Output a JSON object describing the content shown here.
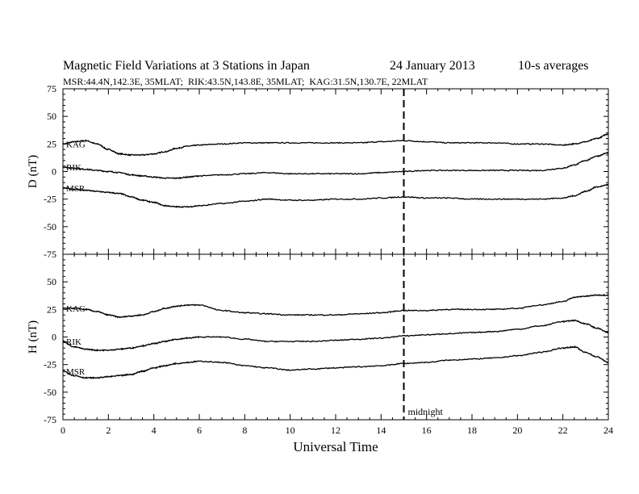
{
  "chart_data": [
    {
      "type": "line",
      "panel": "D",
      "title": "Magnetic Field Variations at 3 Stations in Japan",
      "date": "24 January 2013",
      "note": "10-s averages",
      "subtitle": "MSR:44.4N,142.3E, 35MLAT;  RIK:43.5N,143.8E, 35MLAT;  KAG:31.5N,130.7E, 22MLAT",
      "ylabel": "D (nT)",
      "xlabel": "",
      "xlim": [
        0,
        24
      ],
      "ylim": [
        -75,
        75
      ],
      "yticks": [
        "75",
        "50",
        "25",
        "0",
        "-25",
        "-50",
        "-75"
      ],
      "series": [
        {
          "name": "KAG",
          "x": [
            0,
            0.5,
            1,
            1.5,
            2,
            2.5,
            3,
            3.5,
            4,
            4.5,
            5,
            5.5,
            6,
            7,
            8,
            9,
            10,
            11,
            12,
            13,
            14,
            15,
            16,
            17,
            18,
            19,
            20,
            21,
            22,
            22.5,
            23,
            23.5,
            24
          ],
          "values": [
            25,
            27,
            28,
            25,
            20,
            16,
            15,
            15,
            16,
            18,
            21,
            23,
            24,
            25,
            26,
            26,
            26,
            26,
            26,
            26,
            27,
            28,
            27,
            26,
            26,
            26,
            25,
            25,
            24,
            25,
            27,
            30,
            34
          ]
        },
        {
          "name": "RIK",
          "x": [
            0,
            0.5,
            1,
            1.5,
            2,
            2.5,
            3,
            3.5,
            4,
            4.5,
            5,
            5.5,
            6,
            7,
            8,
            9,
            10,
            11,
            12,
            13,
            14,
            15,
            16,
            17,
            18,
            19,
            20,
            21,
            22,
            22.5,
            23,
            23.5,
            24
          ],
          "values": [
            4,
            3,
            2,
            1,
            0,
            -1,
            -3,
            -4,
            -5,
            -6,
            -6,
            -5,
            -4,
            -3,
            -2,
            -1,
            -2,
            -2,
            -2,
            -2,
            -1,
            0,
            1,
            1,
            1,
            1,
            1,
            1,
            3,
            6,
            10,
            14,
            17
          ]
        },
        {
          "name": "MSR",
          "x": [
            0,
            0.5,
            1,
            1.5,
            2,
            2.5,
            3,
            3.5,
            4,
            4.5,
            5,
            5.5,
            6,
            7,
            8,
            9,
            10,
            11,
            12,
            13,
            14,
            15,
            16,
            17,
            18,
            19,
            20,
            21,
            22,
            22.5,
            23,
            23.5,
            24
          ],
          "values": [
            -15,
            -16,
            -17,
            -18,
            -19,
            -20,
            -23,
            -26,
            -28,
            -31,
            -32,
            -32,
            -31,
            -29,
            -27,
            -25,
            -26,
            -26,
            -25,
            -25,
            -24,
            -23,
            -24,
            -24,
            -25,
            -25,
            -25,
            -25,
            -24,
            -22,
            -18,
            -14,
            -12
          ]
        }
      ]
    },
    {
      "type": "line",
      "panel": "H",
      "ylabel": "H (nT)",
      "xlabel": "Universal Time",
      "xlim": [
        0,
        24
      ],
      "ylim": [
        -75,
        75
      ],
      "yticks": [
        "",
        "50",
        "25",
        "0",
        "-25",
        "-50",
        "-75"
      ],
      "xticks": [
        "0",
        "2",
        "4",
        "6",
        "8",
        "10",
        "12",
        "14",
        "16",
        "18",
        "20",
        "22",
        "24"
      ],
      "marker_x": 15,
      "marker_label": "midnight",
      "series": [
        {
          "name": "KAG",
          "x": [
            0,
            0.5,
            1,
            1.5,
            2,
            2.5,
            3,
            3.5,
            4,
            4.5,
            5,
            5.5,
            6,
            7,
            8,
            9,
            10,
            11,
            12,
            13,
            14,
            15,
            16,
            17,
            18,
            19,
            20,
            21,
            22,
            22.5,
            23,
            23.5,
            24
          ],
          "values": [
            26,
            26,
            25,
            23,
            20,
            18,
            19,
            20,
            23,
            26,
            28,
            29,
            29,
            24,
            22,
            21,
            20,
            20,
            20,
            21,
            22,
            24,
            24,
            25,
            25,
            25,
            26,
            29,
            32,
            36,
            37,
            38,
            38
          ]
        },
        {
          "name": "RIK",
          "x": [
            0,
            0.5,
            1,
            1.5,
            2,
            2.5,
            3,
            3.5,
            4,
            4.5,
            5,
            5.5,
            6,
            7,
            8,
            9,
            10,
            11,
            12,
            13,
            14,
            15,
            16,
            17,
            18,
            19,
            20,
            21,
            22,
            22.5,
            23,
            23.5,
            24
          ],
          "values": [
            -4,
            -9,
            -11,
            -12,
            -12,
            -11,
            -10,
            -8,
            -6,
            -4,
            -2,
            -1,
            0,
            0,
            -2,
            -4,
            -4,
            -4,
            -3,
            -2,
            -1,
            1,
            2,
            3,
            4,
            5,
            7,
            10,
            14,
            15,
            12,
            8,
            4
          ]
        },
        {
          "name": "MSR",
          "x": [
            0,
            0.5,
            1,
            1.5,
            2,
            2.5,
            3,
            3.5,
            4,
            4.5,
            5,
            5.5,
            6,
            7,
            8,
            9,
            10,
            11,
            12,
            13,
            14,
            15,
            16,
            17,
            18,
            19,
            20,
            21,
            22,
            22.5,
            23,
            23.5,
            24
          ],
          "values": [
            -31,
            -35,
            -37,
            -37,
            -36,
            -35,
            -34,
            -31,
            -28,
            -26,
            -24,
            -23,
            -22,
            -23,
            -26,
            -28,
            -30,
            -29,
            -28,
            -27,
            -26,
            -24,
            -23,
            -21,
            -20,
            -19,
            -17,
            -14,
            -10,
            -9,
            -14,
            -18,
            -23
          ]
        }
      ]
    }
  ]
}
